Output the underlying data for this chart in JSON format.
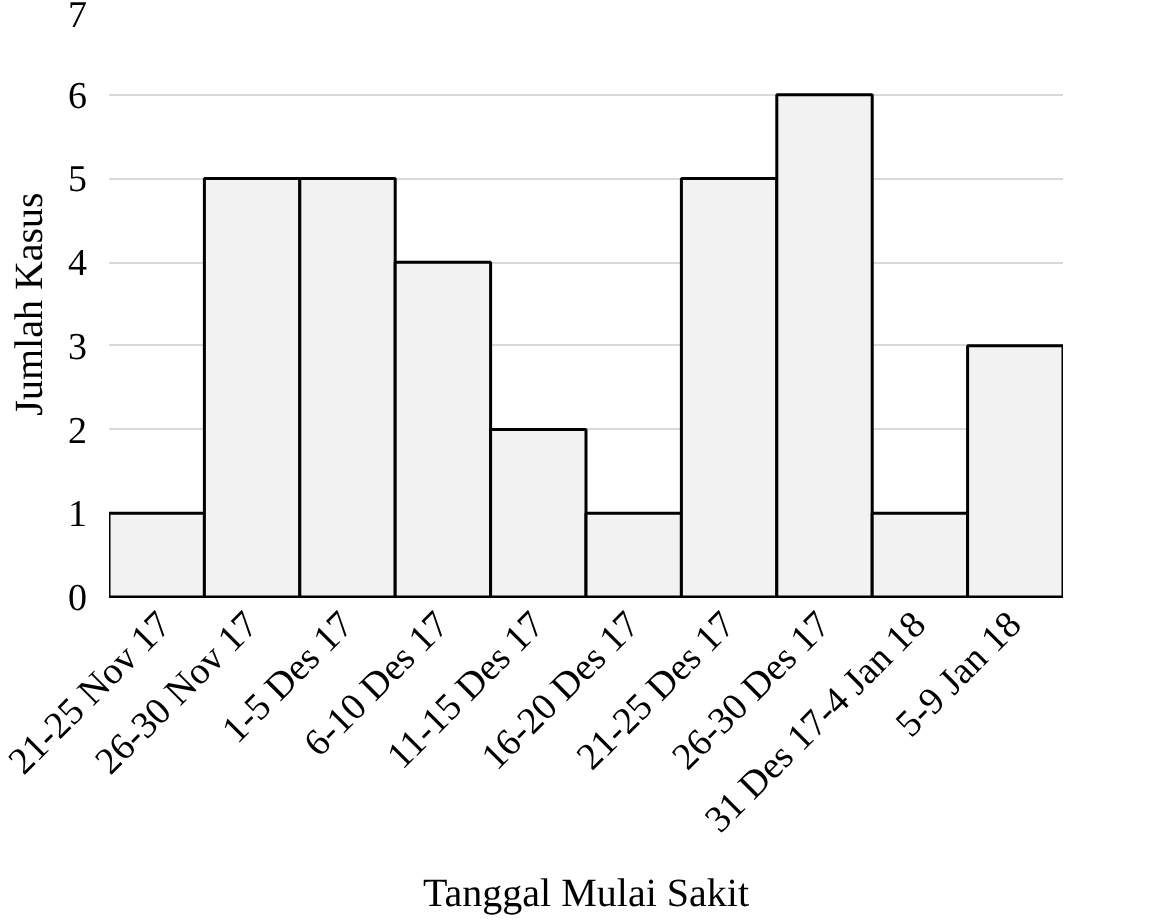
{
  "chart_data": {
    "type": "bar",
    "xlabel": "Tanggal Mulai Sakit",
    "ylabel": "Jumlah Kasus",
    "categories": [
      "21-25 Nov 17",
      "26-30 Nov 17",
      "1-5 Des 17",
      "6-10 Des 17",
      "11-15 Des 17",
      "16-20 Des 17",
      "21-25 Des 17",
      "26-30 Des 17",
      "31 Des 17-4 Jan 18",
      "5-9 Jan 18"
    ],
    "values": [
      1,
      5,
      5,
      4,
      2,
      1,
      5,
      6,
      1,
      3
    ],
    "color": "#f2f2f2",
    "ylim": [
      0,
      7
    ],
    "yticks": [
      0,
      1,
      2,
      3,
      4,
      5,
      6,
      7
    ],
    "grid": "y"
  }
}
